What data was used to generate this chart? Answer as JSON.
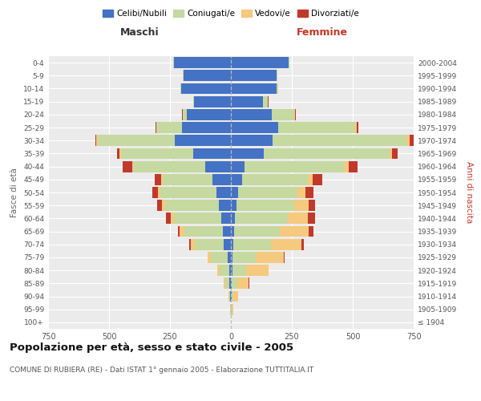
{
  "age_groups": [
    "100+",
    "95-99",
    "90-94",
    "85-89",
    "80-84",
    "75-79",
    "70-74",
    "65-69",
    "60-64",
    "55-59",
    "50-54",
    "45-49",
    "40-44",
    "35-39",
    "30-34",
    "25-29",
    "20-24",
    "15-19",
    "10-14",
    "5-9",
    "0-4"
  ],
  "birth_years": [
    "≤ 1904",
    "1905-1909",
    "1910-1914",
    "1915-1919",
    "1920-1924",
    "1925-1929",
    "1930-1934",
    "1935-1939",
    "1940-1944",
    "1945-1949",
    "1950-1954",
    "1955-1959",
    "1960-1964",
    "1965-1969",
    "1970-1974",
    "1975-1979",
    "1980-1984",
    "1985-1989",
    "1990-1994",
    "1995-1999",
    "2000-2004"
  ],
  "male": {
    "celibe": [
      1,
      1,
      2,
      5,
      7,
      12,
      28,
      32,
      40,
      50,
      60,
      75,
      105,
      155,
      230,
      200,
      180,
      150,
      205,
      195,
      235
    ],
    "coniugato": [
      0,
      2,
      6,
      18,
      40,
      70,
      120,
      160,
      195,
      220,
      230,
      205,
      295,
      295,
      315,
      105,
      18,
      5,
      2,
      2,
      2
    ],
    "vedovo": [
      0,
      1,
      2,
      5,
      9,
      12,
      18,
      20,
      12,
      12,
      10,
      6,
      6,
      6,
      6,
      2,
      1,
      0,
      0,
      0,
      0
    ],
    "divorziato": [
      0,
      0,
      0,
      1,
      1,
      2,
      4,
      6,
      18,
      22,
      22,
      28,
      38,
      12,
      6,
      2,
      1,
      0,
      0,
      0,
      0
    ]
  },
  "female": {
    "nubile": [
      0,
      1,
      2,
      3,
      5,
      6,
      9,
      12,
      18,
      22,
      28,
      45,
      55,
      135,
      170,
      195,
      168,
      133,
      188,
      188,
      238
    ],
    "coniugata": [
      0,
      2,
      8,
      22,
      58,
      95,
      155,
      190,
      215,
      238,
      245,
      270,
      410,
      515,
      550,
      315,
      93,
      18,
      6,
      2,
      2
    ],
    "vedova": [
      1,
      6,
      18,
      48,
      90,
      115,
      125,
      118,
      83,
      58,
      33,
      22,
      18,
      12,
      12,
      6,
      2,
      1,
      0,
      0,
      0
    ],
    "divorziata": [
      0,
      0,
      1,
      2,
      3,
      6,
      9,
      18,
      28,
      27,
      33,
      38,
      38,
      22,
      17,
      6,
      2,
      1,
      0,
      0,
      0
    ]
  },
  "colors": {
    "celibe": "#4472c4",
    "coniugato": "#c5d9a0",
    "vedovo": "#f5c97e",
    "divorziato": "#c0392b"
  },
  "title": "Popolazione per età, sesso e stato civile - 2005",
  "subtitle": "COMUNE DI RUBIERA (RE) - Dati ISTAT 1° gennaio 2005 - Elaborazione TUTTITALIA.IT",
  "xlabel_left": "Maschi",
  "xlabel_right": "Femmine",
  "ylabel_left": "Fasce di età",
  "ylabel_right": "Anni di nascita",
  "xlim": 750,
  "bg_color": "#ffffff",
  "grid_color": "#cccccc",
  "legend_labels": [
    "Celibi/Nubili",
    "Coniugati/e",
    "Vedovi/e",
    "Divorziati/e"
  ]
}
